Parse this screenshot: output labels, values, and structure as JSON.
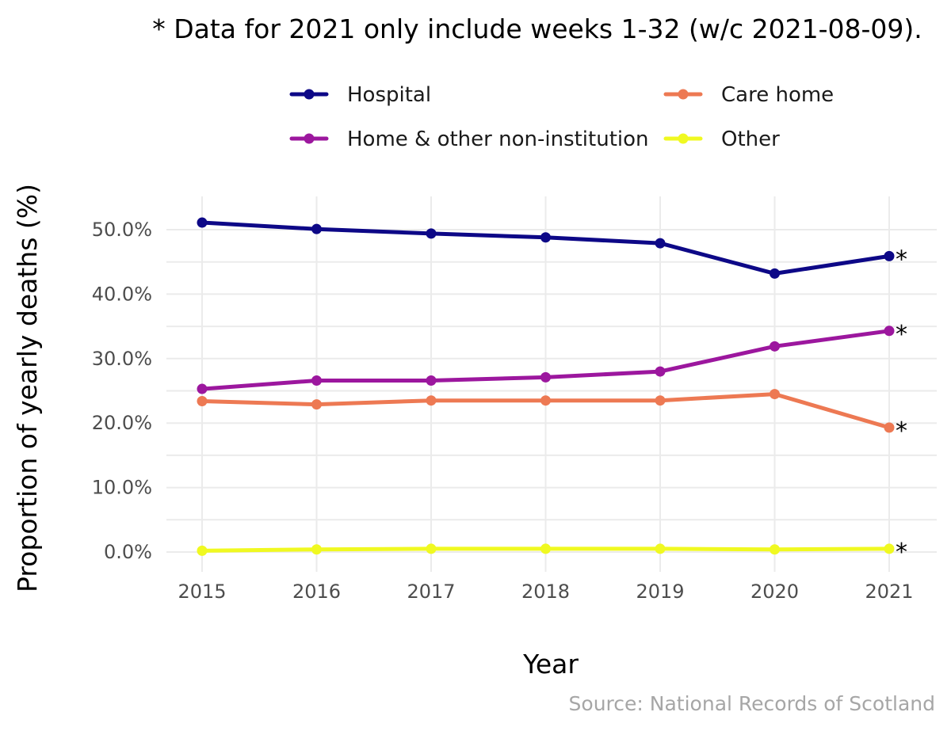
{
  "chart_data": {
    "type": "line",
    "title": "* Data for 2021 only include weeks 1-32 (w/c 2021-08-09).",
    "xlabel": "Year",
    "ylabel": "Proportion of yearly deaths (%)",
    "caption": "Source: National Records of Scotland",
    "x": [
      "2015",
      "2016",
      "2017",
      "2018",
      "2019",
      "2020",
      "2021"
    ],
    "yticks": [
      0,
      10,
      20,
      30,
      40,
      50
    ],
    "ytick_labels": [
      "0.0%",
      "10.0%",
      "20.0%",
      "30.0%",
      "40.0%",
      "50.0%"
    ],
    "ylim": [
      -1.5,
      53.5
    ],
    "grid": true,
    "legend_position": "top",
    "annotation_marker": "*",
    "series": [
      {
        "name": "Hospital",
        "color": "#0d0887",
        "values": [
          51.1,
          50.1,
          49.4,
          48.8,
          47.9,
          43.2,
          45.9
        ]
      },
      {
        "name": "Care home",
        "color": "#ed7953",
        "values": [
          23.4,
          22.9,
          23.5,
          23.5,
          23.5,
          24.5,
          19.3
        ]
      },
      {
        "name": "Home & other non-institution",
        "color": "#9c179e",
        "values": [
          25.3,
          26.6,
          26.6,
          27.1,
          28.0,
          31.9,
          34.3
        ]
      },
      {
        "name": "Other",
        "color": "#f0f921",
        "values": [
          0.2,
          0.4,
          0.5,
          0.5,
          0.5,
          0.4,
          0.5
        ]
      }
    ]
  }
}
